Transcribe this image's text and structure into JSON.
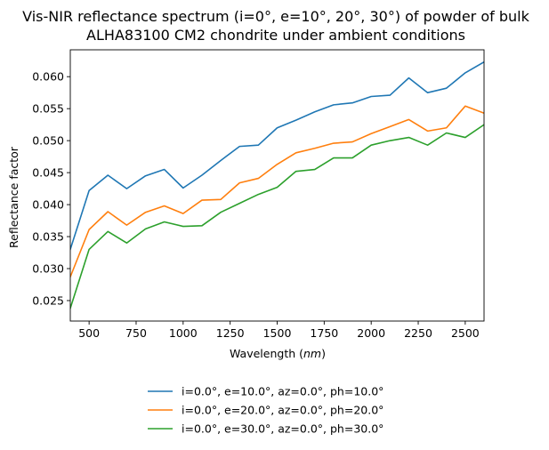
{
  "chart_data": {
    "type": "line",
    "title_line1": "Vis-NIR reflectance spectrum (i=0°, e=10°, 20°, 30°) of powder of bulk",
    "title_line2": "ALHA83100 CM2 chondrite under ambient conditions",
    "xlabel_prefix": "Wavelength (",
    "xlabel_unit": "nm",
    "xlabel_suffix": ")",
    "ylabel": "Reflectance factor",
    "xlim": [
      400,
      2600
    ],
    "ylim": [
      0.0218,
      0.0642
    ],
    "xticks": [
      500,
      750,
      1000,
      1250,
      1500,
      1750,
      2000,
      2250,
      2500
    ],
    "yticks": [
      0.025,
      0.03,
      0.035,
      0.04,
      0.045,
      0.05,
      0.055,
      0.06
    ],
    "ytick_labels": [
      "0.025",
      "0.030",
      "0.035",
      "0.040",
      "0.045",
      "0.050",
      "0.055",
      "0.060"
    ],
    "grid": false,
    "legend_placement": "below-center",
    "x": [
      400,
      500,
      600,
      700,
      800,
      900,
      1000,
      1100,
      1200,
      1300,
      1400,
      1500,
      1600,
      1700,
      1800,
      1900,
      2000,
      2100,
      2200,
      2300,
      2400,
      2500,
      2600
    ],
    "series": [
      {
        "name": "i=0.0°, e=10.0°, az=0.0°, ph=10.0°",
        "color": "#1f77b4",
        "values": [
          0.033,
          0.0422,
          0.0446,
          0.0425,
          0.0445,
          0.0455,
          0.0426,
          0.0446,
          0.0469,
          0.0491,
          0.0493,
          0.052,
          0.0532,
          0.0545,
          0.0556,
          0.0559,
          0.0569,
          0.0571,
          0.0598,
          0.0575,
          0.0582,
          0.0606,
          0.0623
        ]
      },
      {
        "name": "i=0.0°, e=20.0°, az=0.0°, ph=20.0°",
        "color": "#ff7f0e",
        "values": [
          0.0287,
          0.0361,
          0.0389,
          0.0368,
          0.0388,
          0.0398,
          0.0386,
          0.0407,
          0.0408,
          0.0434,
          0.0441,
          0.0463,
          0.0481,
          0.0488,
          0.0496,
          0.0498,
          0.0511,
          0.0522,
          0.0533,
          0.0515,
          0.052,
          0.0554,
          0.0543
        ]
      },
      {
        "name": "i=0.0°, e=30.0°, az=0.0°, ph=30.0°",
        "color": "#2ca02c",
        "values": [
          0.0238,
          0.033,
          0.0358,
          0.034,
          0.0362,
          0.0373,
          0.0366,
          0.0367,
          0.0388,
          0.0402,
          0.0416,
          0.0427,
          0.0452,
          0.0455,
          0.0473,
          0.0473,
          0.0493,
          0.05,
          0.0505,
          0.0493,
          0.0512,
          0.0505,
          0.0525
        ]
      }
    ]
  }
}
